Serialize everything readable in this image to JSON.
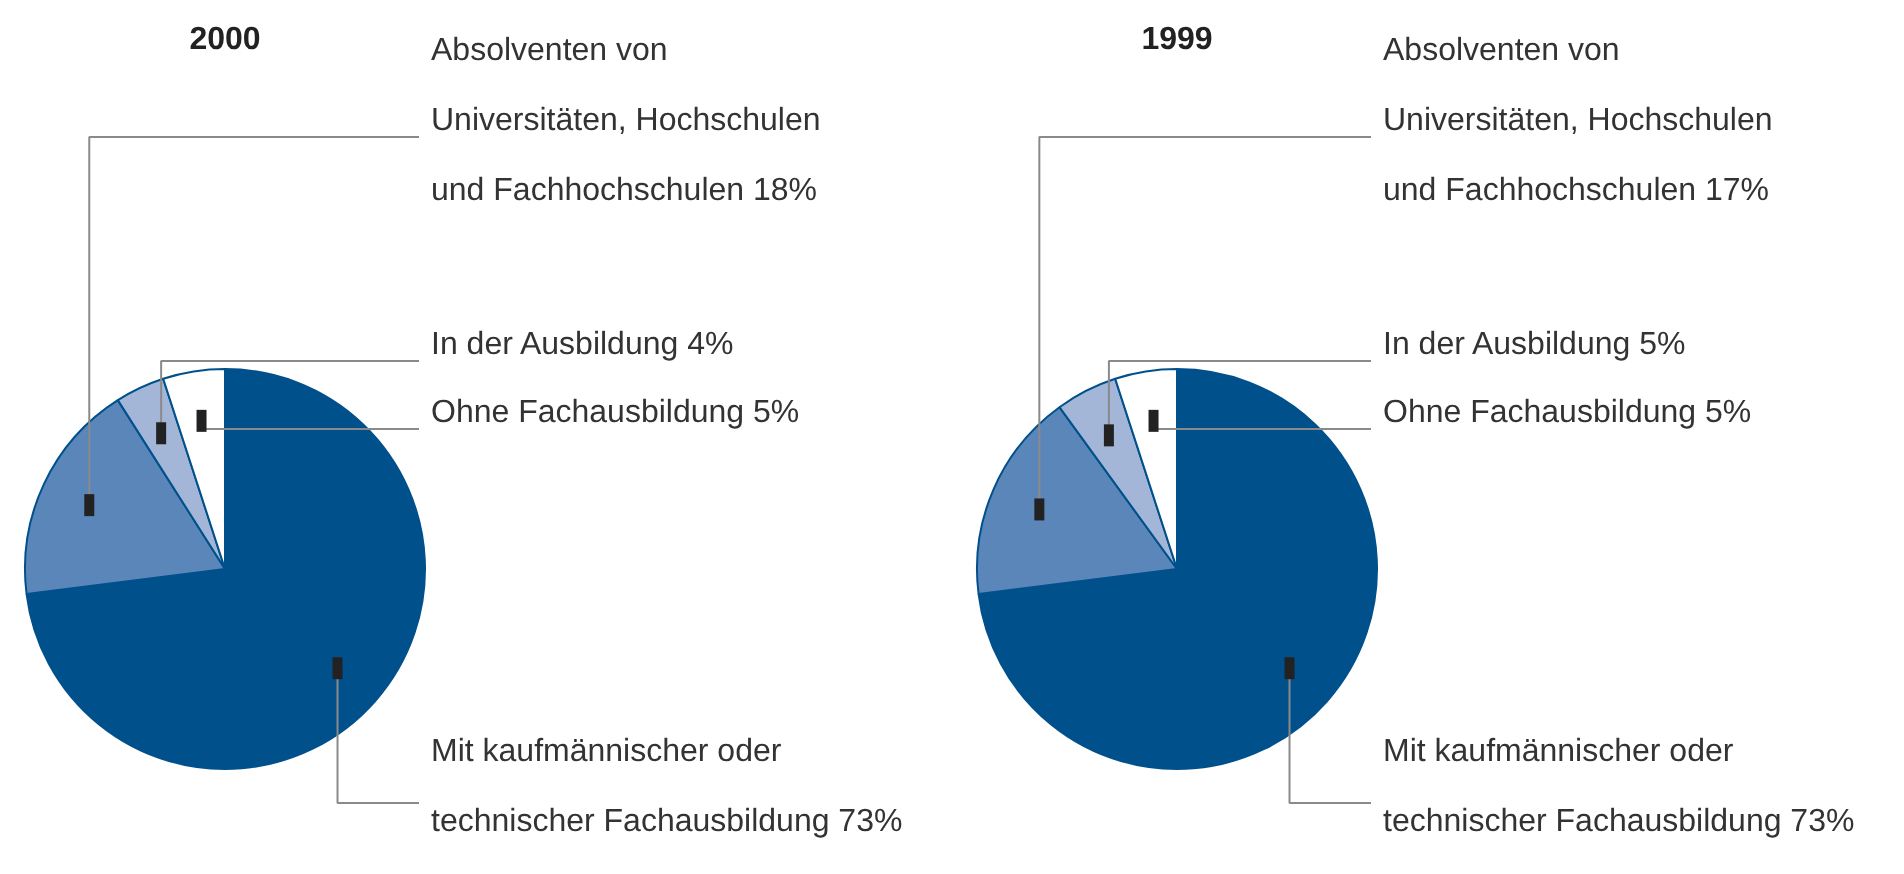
{
  "chart_data": [
    {
      "type": "pie",
      "title": "2000",
      "categories": [
        "Mit kaufmännischer oder\ntechnischer Fachausbildung",
        "Absolventen von\nUniversitäten, Hochschulen\nund Fachhochschulen",
        "In der Ausbildung",
        "Ohne Fachausbildung"
      ],
      "values": [
        73,
        18,
        4,
        5
      ],
      "value_labels": [
        "73%",
        "18%",
        "4%",
        "5%"
      ],
      "colors": [
        "#00508c",
        "#5b86ba",
        "#a3b6d7",
        "#ffffff"
      ]
    },
    {
      "type": "pie",
      "title": "1999",
      "categories": [
        "Mit kaufmännischer oder\ntechnischer Fachausbildung",
        "Absolventen von\nUniversitäten, Hochschulen\nund Fachhochschulen",
        "In der Ausbildung",
        "Ohne Fachausbildung"
      ],
      "values": [
        73,
        17,
        5,
        5
      ],
      "value_labels": [
        "73%",
        "17%",
        "5%",
        "5%"
      ],
      "colors": [
        "#00508c",
        "#5b86ba",
        "#a3b6d7",
        "#ffffff"
      ]
    }
  ]
}
